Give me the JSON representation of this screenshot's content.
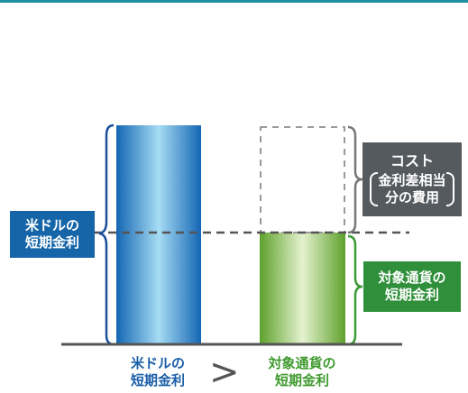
{
  "labels": {
    "usd_box": [
      "米ドルの",
      "短期金利"
    ],
    "target_box": [
      "対象通貨の",
      "短期金利"
    ],
    "cost_title": "コスト",
    "cost_detail": [
      "金利差相当",
      "分の費用"
    ],
    "usd_axis": [
      "米ドルの",
      "短期金利"
    ],
    "target_axis": [
      "対象通貨の",
      "短期金利"
    ],
    "comparison": ">"
  },
  "colors": {
    "usd": "#1565a8",
    "target": "#2f8f3a",
    "cost": "#555a5f",
    "top_rule": "#1f8fa6"
  }
}
